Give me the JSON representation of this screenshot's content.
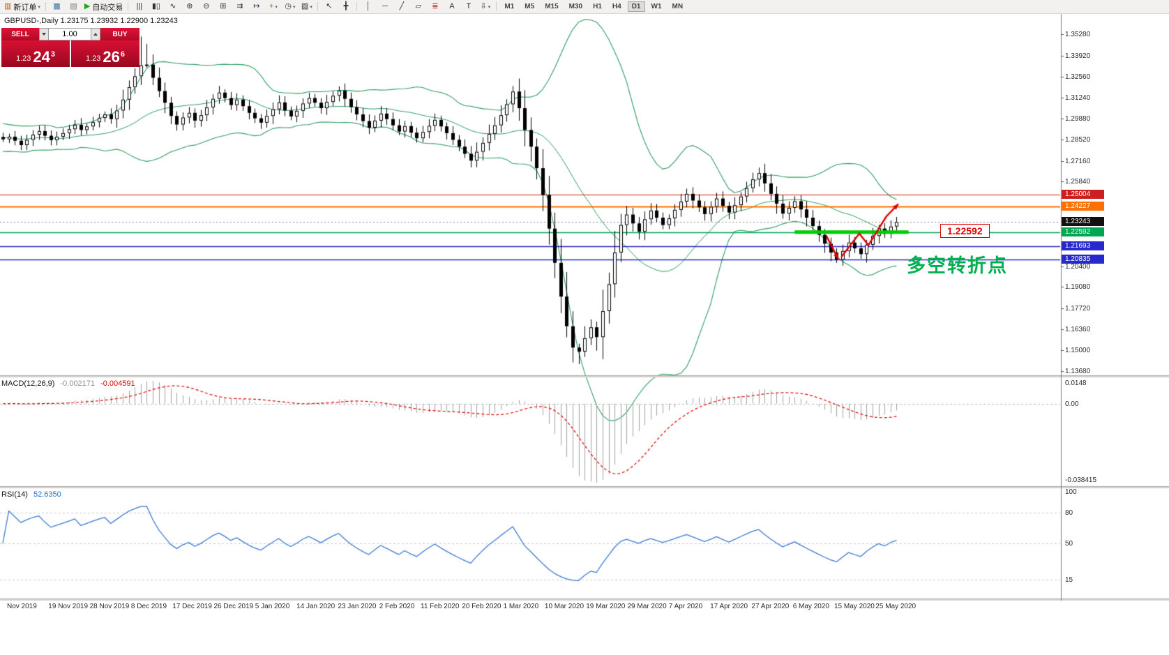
{
  "toolbar": {
    "caret_glyph": "▾",
    "buttons": [
      {
        "name": "new-order-button",
        "glyph": "▥",
        "glyph_color": "#b05c10",
        "label": "新订单",
        "caret": true
      },
      {
        "name": "sep"
      },
      {
        "name": "charts-window-button",
        "glyph": "▦",
        "glyph_color": "#3a6ea5"
      },
      {
        "name": "profiles-button",
        "glyph": "▤",
        "glyph_color": "#777777"
      },
      {
        "name": "auto-trading-button",
        "glyph": "▶",
        "glyph_color": "#18a818",
        "label": "自动交易"
      },
      {
        "name": "sep"
      },
      {
        "name": "chart-bars-button",
        "glyph": "|||"
      },
      {
        "name": "chart-candles-button",
        "glyph": "▮▯"
      },
      {
        "name": "chart-line-button",
        "glyph": "∿"
      },
      {
        "name": "zoom-in-button",
        "glyph": "⊕"
      },
      {
        "name": "zoom-out-button",
        "glyph": "⊖"
      },
      {
        "name": "tile-windows-button",
        "glyph": "⊞"
      },
      {
        "name": "auto-scroll-button",
        "glyph": "⇉"
      },
      {
        "name": "chart-shift-button",
        "glyph": "↦"
      },
      {
        "name": "indicators-button",
        "glyph": "+",
        "glyph_color": "#1a9e1a",
        "caret": true
      },
      {
        "name": "periods-button",
        "glyph": "◷",
        "caret": true
      },
      {
        "name": "templates-button",
        "glyph": "▨",
        "caret": true
      },
      {
        "name": "sep"
      },
      {
        "name": "cursor-button",
        "glyph": "↖"
      },
      {
        "name": "crosshair-button",
        "glyph": "╋"
      },
      {
        "name": "sep"
      },
      {
        "name": "vertical-line-button",
        "glyph": "│"
      },
      {
        "name": "horizontal-line-button",
        "glyph": "─"
      },
      {
        "name": "trendline-button",
        "glyph": "╱"
      },
      {
        "name": "channel-button",
        "glyph": "▱"
      },
      {
        "name": "fibonacci-button",
        "glyph": "≣",
        "glyph_color": "#b8342b"
      },
      {
        "name": "text-button",
        "glyph": "A"
      },
      {
        "name": "label-button",
        "glyph": "T"
      },
      {
        "name": "arrows-button",
        "glyph": "⇩",
        "caret": true
      },
      {
        "name": "sep"
      }
    ],
    "timeframes": [
      "M1",
      "M5",
      "M15",
      "M30",
      "H1",
      "H4",
      "D1",
      "W1",
      "MN"
    ],
    "active_timeframe": "D1"
  },
  "chart": {
    "title": "GBPUSD-,Daily 1.23175 1.23932 1.22900 1.23243",
    "price_scale_ticks": [
      "1.35280",
      "1.33920",
      "1.32560",
      "1.31240",
      "1.29880",
      "1.28520",
      "1.27160",
      "1.25840",
      "1.20400",
      "1.19080",
      "1.17720",
      "1.16360",
      "1.15000",
      "1.13680"
    ],
    "price_badges": [
      {
        "text": "1.25004",
        "color": "#cc2020"
      },
      {
        "text": "1.24227",
        "color": "#ff7000"
      },
      {
        "text": "1.23243",
        "color": "#111111"
      },
      {
        "text": "1.22592",
        "color": "#00a651"
      },
      {
        "text": "1.21693",
        "color": "#2828cc"
      },
      {
        "text": "1.20835",
        "color": "#2828cc"
      }
    ],
    "levels": [
      {
        "value": 1.25004,
        "color": "#cc2020",
        "width": 1.2,
        "style": "solid"
      },
      {
        "value": 1.24227,
        "color": "#ff7000",
        "width": 2.2,
        "style": "solid"
      },
      {
        "value": 1.23243,
        "color": "#888888",
        "width": 1,
        "style": "dotted"
      },
      {
        "value": 1.22592,
        "color": "#00a651",
        "width": 1.6,
        "style": "solid"
      },
      {
        "value": 1.21693,
        "color": "#2828cc",
        "width": 1.6,
        "style": "solid"
      },
      {
        "value": 1.20835,
        "color": "#2828cc",
        "width": 1.6,
        "style": "solid"
      }
    ],
    "x_labels": [
      "Nov 2019",
      "19 Nov 2019",
      "28 Nov 2019",
      "8 Dec 2019",
      "17 Dec 2019",
      "26 Dec 2019",
      "5 Jan 2020",
      "14 Jan 2020",
      "23 Jan 2020",
      "2 Feb 2020",
      "11 Feb 2020",
      "20 Feb 2020",
      "1 Mar 2020",
      "10 Mar 2020",
      "19 Mar 2020",
      "29 Mar 2020",
      "7 Apr 2020",
      "17 Apr 2020",
      "27 Apr 2020",
      "6 May 2020",
      "15 May 2020",
      "25 May 2020"
    ]
  },
  "trade_panel": {
    "sell_label": "SELL",
    "buy_label": "BUY",
    "volume": "1.00",
    "sell_price_small": "1.23",
    "sell_price_big": "24",
    "sell_price_sup": "3",
    "buy_price_small": "1.23",
    "buy_price_big": "26",
    "buy_price_sup": "6"
  },
  "indicators": {
    "macd": {
      "name": "MACD(12,26,9)",
      "value_main": "-0.002171",
      "value_signal": "-0.004591",
      "scale_top": "0.0148",
      "scale_zero": "0.00",
      "scale_bottom": "-0.038415",
      "histogram_color": "#a0a0a0",
      "signal_color": "#e00000"
    },
    "rsi": {
      "name": "RSI(14)",
      "value": "52.6350",
      "line_color": "#3a7bd5",
      "levels": [
        80,
        50,
        15
      ],
      "scale_labels": [
        {
          "text": "100",
          "value": 100
        },
        {
          "text": "80",
          "value": 80
        },
        {
          "text": "50",
          "value": 50
        },
        {
          "text": "15",
          "value": 15
        }
      ]
    }
  },
  "annotations": {
    "level_label": "1.22592",
    "turning_point": "多空转折点",
    "turning_point_color": "#00b050",
    "support_segment": {
      "start_index": 132,
      "end_index": 151,
      "price": 1.22592,
      "color": "#00cc00",
      "thickness": 5
    },
    "arrows": {
      "color": "#e00000",
      "paths": [
        [
          [
            137.3,
            1.2235
          ],
          [
            139.3,
            1.2085
          ]
        ],
        [
          [
            139.8,
            1.21
          ],
          [
            142.8,
            1.225
          ],
          [
            144.3,
            1.2175
          ],
          [
            147.3,
            1.236
          ],
          [
            149.3,
            1.244
          ]
        ]
      ]
    }
  },
  "chart_data": {
    "type": "candlestick",
    "symbol": "GBPUSD-",
    "timeframe": "Daily",
    "open": "1.23175",
    "high": "1.23932",
    "low": "1.22900",
    "close": "1.23243",
    "price_range": [
      1.134,
      1.366
    ],
    "bollinger": {
      "period": 20,
      "deviation": 2,
      "color": "#2f9e63"
    },
    "closes": [
      1.2855,
      1.2872,
      1.2846,
      1.2818,
      1.2852,
      1.2885,
      1.2908,
      1.2878,
      1.285,
      1.2872,
      1.2895,
      1.292,
      1.2948,
      1.2915,
      1.2938,
      1.2965,
      1.2992,
      1.3015,
      1.2985,
      1.304,
      1.311,
      1.319,
      1.326,
      1.333,
      1.3335,
      1.325,
      1.3165,
      1.309,
      1.3005,
      1.295,
      1.2995,
      1.3025,
      1.2975,
      1.301,
      1.306,
      1.3115,
      1.3155,
      1.312,
      1.3075,
      1.311,
      1.3068,
      1.3025,
      1.299,
      1.2962,
      1.3005,
      1.3048,
      1.3092,
      1.304,
      1.3002,
      1.3038,
      1.3085,
      1.312,
      1.309,
      1.3055,
      1.3095,
      1.3135,
      1.3168,
      1.3115,
      1.3062,
      1.3015,
      1.2972,
      1.293,
      1.2975,
      1.302,
      1.2985,
      1.2945,
      1.2905,
      1.294,
      1.2898,
      1.2862,
      1.2902,
      1.2942,
      1.298,
      1.2938,
      1.2895,
      1.2852,
      1.2808,
      1.2762,
      1.2718,
      1.2775,
      1.2832,
      1.289,
      1.2945,
      1.301,
      1.308,
      1.3162,
      1.3055,
      1.2915,
      1.2808,
      1.267,
      1.2498,
      1.2282,
      1.2062,
      1.1845,
      1.1655,
      1.1518,
      1.1492,
      1.1578,
      1.1648,
      1.1585,
      1.1752,
      1.1925,
      1.2128,
      1.2305,
      1.2372,
      1.2315,
      1.2262,
      1.2342,
      1.2398,
      1.2352,
      1.2305,
      1.2348,
      1.2402,
      1.2455,
      1.2505,
      1.2462,
      1.2418,
      1.2375,
      1.2422,
      1.2475,
      1.2428,
      1.2385,
      1.2432,
      1.2488,
      1.2542,
      1.2598,
      1.2638,
      1.2572,
      1.2505,
      1.2442,
      1.2378,
      1.2415,
      1.2458,
      1.2405,
      1.2352,
      1.2298,
      1.2242,
      1.2185,
      1.2128,
      1.2082,
      1.2138,
      1.2192,
      1.2155,
      1.2118,
      1.2178,
      1.2235,
      1.2282,
      1.2248,
      1.2295,
      1.23243
    ],
    "wick_overrides": {
      "23": {
        "high": 1.3515
      },
      "24": {
        "high": 1.3468
      },
      "96": {
        "low": 1.1412
      },
      "99": {
        "low": 1.1498
      },
      "139": {
        "low": 1.2062
      }
    }
  }
}
